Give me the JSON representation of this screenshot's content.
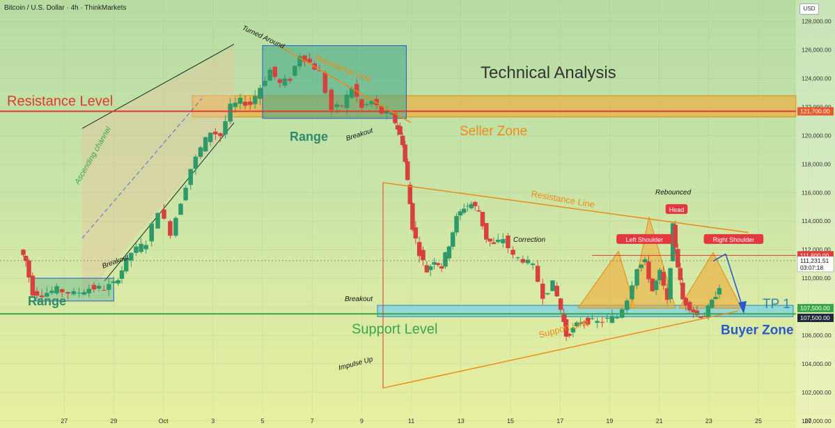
{
  "header": {
    "symbol_line": "Bitcoin / U.S. Dollar · 4h · ThinkMarkets",
    "currency": "USD"
  },
  "chart_data": {
    "type": "candlestick",
    "title": "Technical Analysis",
    "y_axis": {
      "ylim": [
        99500,
        129500
      ],
      "ticks": [
        100000,
        102000,
        104000,
        106000,
        108000,
        110000,
        112000,
        114000,
        116000,
        118000,
        120000,
        122000,
        124000,
        126000,
        128000
      ],
      "tick_labels": [
        "100,000.00",
        "102,000.00",
        "104,000.00",
        "106,000.00",
        "108,000.00",
        "110,000.00",
        "112,000.00",
        "114,000.00",
        "116,000.00",
        "118,000.00",
        "120,000.00",
        "122,000.00",
        "124,000.00",
        "126,000.00",
        "128,000.00"
      ],
      "price_tags": [
        {
          "label": "121,700.00",
          "value": 121700,
          "color": "#e45a2a"
        },
        {
          "label": "111,600.00",
          "value": 111600,
          "color": "#e23b3b"
        },
        {
          "label": "111,231.51",
          "value": 111231,
          "color": "#ffffff",
          "sub": "03:07:18"
        },
        {
          "label": "107,500.00",
          "value": 107900,
          "color": "#3aa64a"
        },
        {
          "label": "107,500.00",
          "value": 107220,
          "color": "#1e2a3a"
        }
      ]
    },
    "x_axis": {
      "ticks": [
        {
          "label": "27",
          "day": -3
        },
        {
          "label": "29",
          "day": -1
        },
        {
          "label": "Oct",
          "day": 1
        },
        {
          "label": "3",
          "day": 3
        },
        {
          "label": "5",
          "day": 5
        },
        {
          "label": "7",
          "day": 7
        },
        {
          "label": "9",
          "day": 9
        },
        {
          "label": "11",
          "day": 11
        },
        {
          "label": "13",
          "day": 13
        },
        {
          "label": "15",
          "day": 15
        },
        {
          "label": "17",
          "day": 17
        },
        {
          "label": "19",
          "day": 19
        },
        {
          "label": "21",
          "day": 21
        },
        {
          "label": "23",
          "day": 23
        },
        {
          "label": "25",
          "day": 25
        },
        {
          "label": "27",
          "day": 27
        }
      ]
    },
    "price_path": [
      [
        -4.7,
        112000
      ],
      [
        -4.5,
        111200
      ],
      [
        -4.2,
        109000
      ],
      [
        -3.8,
        108900
      ],
      [
        -3.2,
        109200
      ],
      [
        -2.5,
        108900
      ],
      [
        -1.9,
        109300
      ],
      [
        -1.3,
        109300
      ],
      [
        -0.9,
        109600
      ],
      [
        -0.6,
        110600
      ],
      [
        -0.2,
        111800
      ],
      [
        0.4,
        112500
      ],
      [
        0.9,
        114800
      ],
      [
        1.4,
        113200
      ],
      [
        1.8,
        115400
      ],
      [
        2.2,
        117700
      ],
      [
        2.6,
        119100
      ],
      [
        3.0,
        120300
      ],
      [
        3.4,
        120000
      ],
      [
        3.8,
        122000
      ],
      [
        4.2,
        122400
      ],
      [
        4.6,
        122200
      ],
      [
        5.0,
        123400
      ],
      [
        5.4,
        124600
      ],
      [
        5.8,
        123600
      ],
      [
        6.2,
        124000
      ],
      [
        6.6,
        125700
      ],
      [
        7.0,
        125100
      ],
      [
        7.4,
        124400
      ],
      [
        7.9,
        121800
      ],
      [
        8.3,
        122100
      ],
      [
        8.7,
        123400
      ],
      [
        9.1,
        121900
      ],
      [
        9.5,
        122400
      ],
      [
        9.9,
        121600
      ],
      [
        10.3,
        121400
      ],
      [
        10.5,
        120500
      ],
      [
        10.7,
        119500
      ],
      [
        10.9,
        116800
      ],
      [
        11.1,
        113600
      ],
      [
        11.4,
        111800
      ],
      [
        11.7,
        110500
      ],
      [
        12.0,
        111300
      ],
      [
        12.3,
        110800
      ],
      [
        12.6,
        112400
      ],
      [
        12.9,
        114200
      ],
      [
        13.2,
        115000
      ],
      [
        13.5,
        115200
      ],
      [
        13.8,
        114700
      ],
      [
        14.1,
        112800
      ],
      [
        14.4,
        112300
      ],
      [
        14.8,
        112800
      ],
      [
        15.2,
        111500
      ],
      [
        15.6,
        111300
      ],
      [
        16.0,
        110800
      ],
      [
        16.4,
        108800
      ],
      [
        16.8,
        109600
      ],
      [
        17.1,
        107800
      ],
      [
        17.3,
        106000
      ],
      [
        17.6,
        106400
      ],
      [
        17.9,
        107000
      ],
      [
        18.2,
        107000
      ],
      [
        18.6,
        106900
      ],
      [
        19.0,
        107100
      ],
      [
        19.4,
        107300
      ],
      [
        19.8,
        108600
      ],
      [
        20.2,
        110800
      ],
      [
        20.5,
        111100
      ],
      [
        20.8,
        109100
      ],
      [
        21.1,
        110400
      ],
      [
        21.4,
        108300
      ],
      [
        21.6,
        113600
      ],
      [
        21.8,
        110900
      ],
      [
        22.0,
        108500
      ],
      [
        22.3,
        108000
      ],
      [
        22.6,
        107400
      ],
      [
        22.9,
        107400
      ],
      [
        23.2,
        108300
      ],
      [
        23.5,
        109500
      ],
      [
        23.8,
        110700
      ],
      [
        24.1,
        110400
      ],
      [
        24.3,
        111200
      ]
    ],
    "annotations": {
      "resistance_level": {
        "label": "Resistance Level",
        "value": 121700
      },
      "support_level": {
        "label": "Support Level",
        "value": 107500
      },
      "seller_zone": {
        "label": "Seller Zone",
        "from": 121300,
        "to": 122800
      },
      "buyer_zone": {
        "label": "Buyer Zone",
        "from": 107400,
        "to": 108000
      },
      "target": {
        "label": "TP 1",
        "value": 107700
      },
      "right_shoulder_line": {
        "value": 111600
      },
      "range_left": {
        "label": "Range",
        "from": 108400,
        "to": 110000,
        "x0": -4.2,
        "x1": -1.0
      },
      "range_top": {
        "label": "Range",
        "from": 121200,
        "to": 126300,
        "x0": 5.0,
        "x1": 10.8
      },
      "texts": [
        {
          "label": "Ascending channel"
        },
        {
          "label": "Breakout"
        },
        {
          "label": "Turned Around"
        },
        {
          "label": "Resistance Line"
        },
        {
          "label": "Breakout"
        },
        {
          "label": "Impulse Up"
        },
        {
          "label": "Resistance Line"
        },
        {
          "label": "Correction"
        },
        {
          "label": "Rebounced"
        },
        {
          "label": "Breakout"
        },
        {
          "label": "Support Line"
        }
      ],
      "pattern_labels": [
        {
          "label": "Left Shoulder",
          "x": 20.4,
          "y": 112700
        },
        {
          "label": "Head",
          "x": 21.7,
          "y": 114800
        },
        {
          "label": "Right Shoulder",
          "x": 24.0,
          "y": 112700
        }
      ]
    }
  }
}
